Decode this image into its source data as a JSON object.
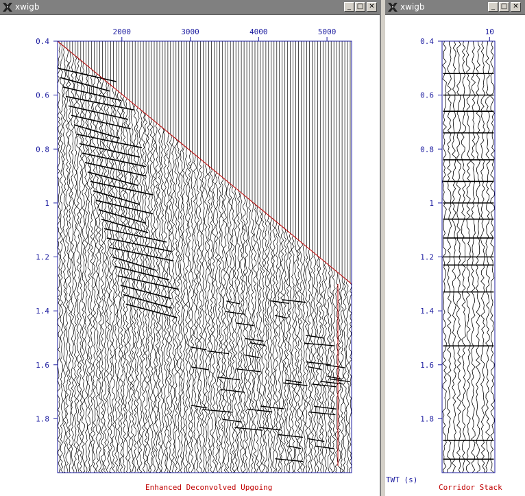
{
  "windows": [
    {
      "title": "xwigb",
      "caption": "Enhanced Deconvolved Upgoing",
      "chart_data": {
        "type": "line",
        "title": "",
        "xlabel": "",
        "ylabel": "",
        "x_ticks": [
          2000,
          3000,
          4000,
          5000
        ],
        "y_ticks": [
          0.4,
          0.6,
          0.8,
          1,
          1.2,
          1.4,
          1.6,
          1.8
        ],
        "xlim": [
          1060,
          5360
        ],
        "ylim": [
          0.4,
          2.0
        ],
        "y_inverted": true,
        "first_break_line": {
          "color": "#c00000",
          "x": [
            1060,
            5360
          ],
          "y": [
            0.4,
            1.3
          ]
        }
      }
    },
    {
      "title": "xwigb",
      "caption": "Corridor Stack",
      "axis_label": "TWT (s)",
      "chart_data": {
        "type": "line",
        "title": "",
        "xlabel": "",
        "ylabel": "TWT (s)",
        "x_ticks": [
          10
        ],
        "y_ticks": [
          0.4,
          0.6,
          0.8,
          1,
          1.2,
          1.4,
          1.6,
          1.8
        ],
        "xlim": [
          1,
          11
        ],
        "ylim": [
          0.4,
          2.0
        ],
        "y_inverted": true
      }
    }
  ],
  "buttons": {
    "minimize": "_",
    "maximize": "□",
    "close": "✕"
  },
  "colors": {
    "axis": "#1c1ca0",
    "caption": "#c00000",
    "titlebar": "#808080",
    "trace": "#000000"
  }
}
